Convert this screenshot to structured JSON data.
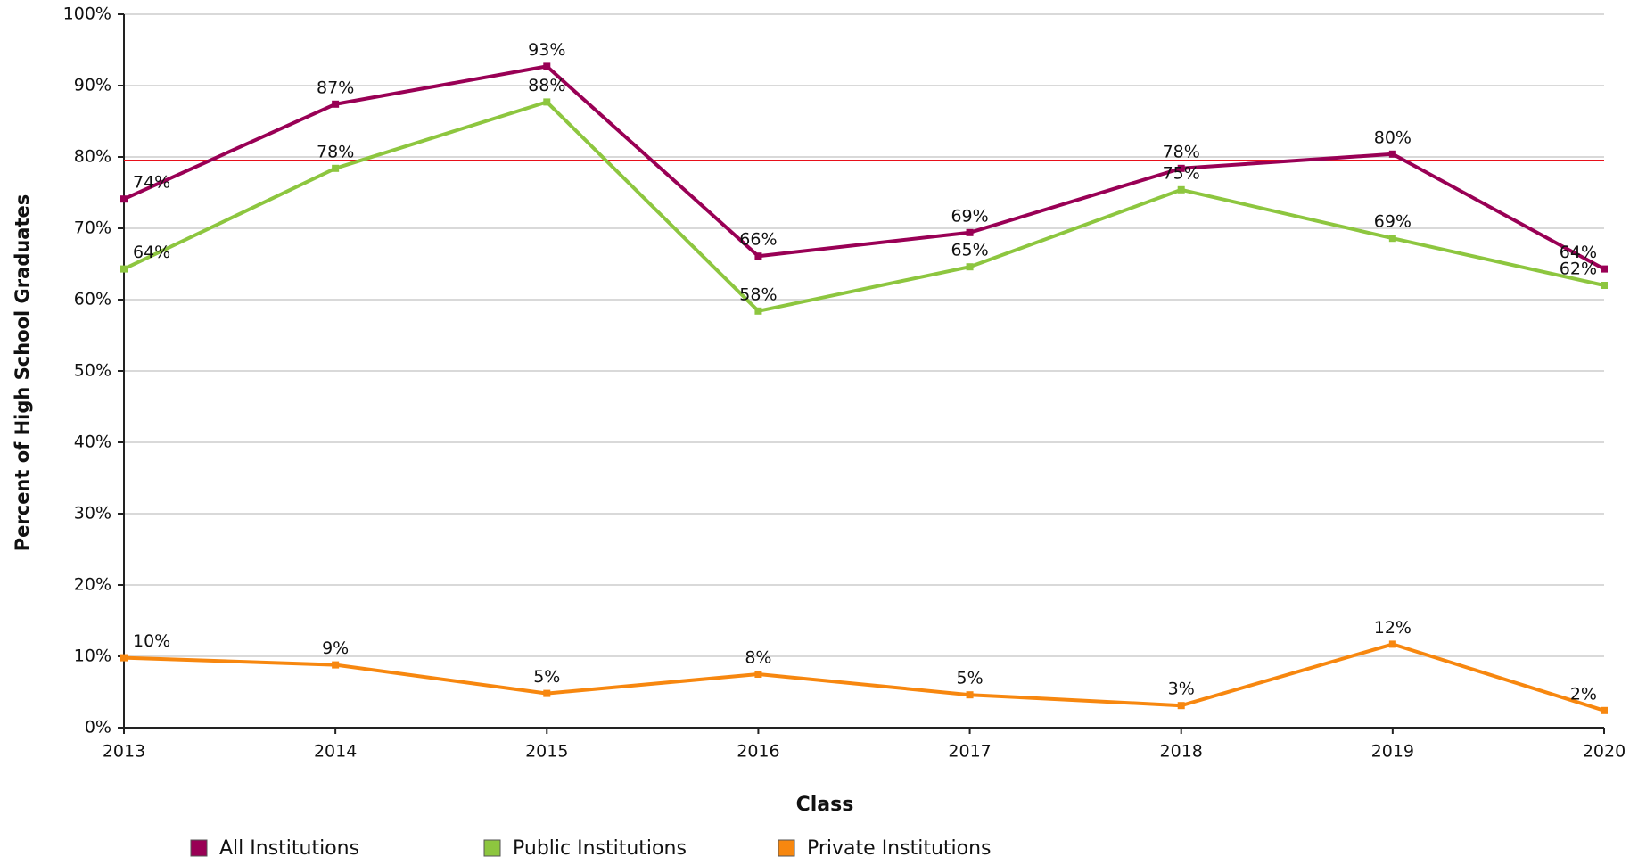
{
  "chart_data": {
    "type": "line",
    "xlabel": "Class",
    "ylabel": "Percent of High School Graduates",
    "categories": [
      "2013",
      "2014",
      "2015",
      "2016",
      "2017",
      "2018",
      "2019",
      "2020"
    ],
    "series": [
      {
        "name": "All Institutions",
        "color": "#990055",
        "values": [
          74.1,
          87.4,
          92.7,
          66.1,
          69.4,
          78.4,
          80.4,
          64.3
        ],
        "value_labels": [
          "74%",
          "87%",
          "93%",
          "66%",
          "69%",
          "78%",
          "80%",
          "64%"
        ]
      },
      {
        "name": "Public Institutions",
        "color": "#8dc63f",
        "values": [
          64.3,
          78.4,
          87.7,
          58.4,
          64.6,
          75.4,
          68.6,
          62.0
        ],
        "value_labels": [
          "64%",
          "78%",
          "88%",
          "58%",
          "65%",
          "75%",
          "69%",
          "62%"
        ]
      },
      {
        "name": "Private Institutions",
        "color": "#f7870f",
        "values": [
          9.8,
          8.8,
          4.8,
          7.5,
          4.6,
          3.1,
          11.7,
          2.4
        ],
        "value_labels": [
          "10%",
          "9%",
          "5%",
          "8%",
          "5%",
          "3%",
          "12%",
          "2%"
        ]
      }
    ],
    "reference_line": {
      "value": 79.5,
      "color": "#e8101a"
    },
    "ylim": [
      0,
      100
    ],
    "yticks": [
      {
        "value": 0,
        "label": "0%"
      },
      {
        "value": 10,
        "label": "10%"
      },
      {
        "value": 20,
        "label": "20%"
      },
      {
        "value": 30,
        "label": "30%"
      },
      {
        "value": 40,
        "label": "40%"
      },
      {
        "value": 50,
        "label": "50%"
      },
      {
        "value": 60,
        "label": "60%"
      },
      {
        "value": 70,
        "label": "70%"
      },
      {
        "value": 80,
        "label": "80%"
      },
      {
        "value": 90,
        "label": "90%"
      },
      {
        "value": 100,
        "label": "100%"
      }
    ],
    "grid": true
  }
}
